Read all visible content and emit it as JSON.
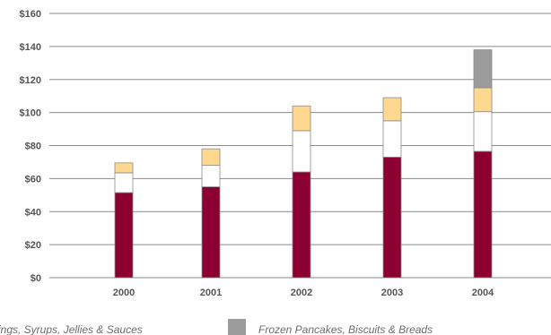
{
  "chart_data": {
    "type": "bar",
    "stacked": true,
    "categories": [
      "2000",
      "2001",
      "2002",
      "2003",
      "2004"
    ],
    "series": [
      {
        "color": "#8b0030",
        "values": [
          51.5,
          55,
          64,
          73,
          76.5
        ]
      },
      {
        "color": "#ffffff",
        "values": [
          12,
          13,
          25,
          22,
          24
        ]
      },
      {
        "name": "Toppings, Syrups, Jellies & Sauces",
        "color": "#ffd890",
        "values": [
          6,
          10,
          15,
          14,
          14.5
        ]
      },
      {
        "name": "Frozen Pancakes, Biscuits & Breads",
        "color": "#9b9b9b",
        "values": [
          0,
          0,
          0,
          0,
          23
        ]
      }
    ],
    "ylim": [
      0,
      160
    ],
    "yticks": [
      0,
      20,
      40,
      60,
      80,
      100,
      120,
      140,
      160
    ],
    "ytick_labels": [
      "$0",
      "$20",
      "$40",
      "$60",
      "$80",
      "$100",
      "$120",
      "$140",
      "$160"
    ],
    "title": "",
    "xlabel": "",
    "ylabel": "",
    "grid": true,
    "legend_position": "bottom",
    "gridline_color": "#8a8a8a",
    "bar_border_color": "#8a8a8a"
  },
  "legend": {
    "item_1": "ings, Syrups, Jellies & Sauces",
    "item_2": "Frozen Pancakes, Biscuits & Breads"
  }
}
